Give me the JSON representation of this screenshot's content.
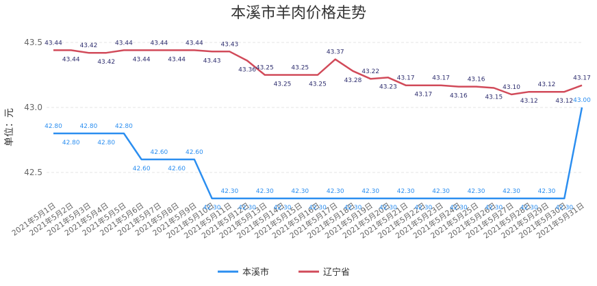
{
  "chart_data": {
    "type": "line",
    "title": "本溪市羊肉价格走势",
    "ylabel": "单位：元",
    "xlabel": "",
    "ylim": [
      42.3,
      43.5
    ],
    "yticks": [
      42.5,
      43.0,
      43.5
    ],
    "grid": true,
    "legend": "bottom",
    "x": [
      "2021年5月1日",
      "2021年5月2日",
      "2021年5月3日",
      "2021年5月4日",
      "2021年5月5日",
      "2021年5月6日",
      "2021年5月7日",
      "2021年5月8日",
      "2021年5月9日",
      "2021年5月10日",
      "2021年5月11日",
      "2021年5月12日",
      "2021年5月13日",
      "2021年5月14日",
      "2021年5月15日",
      "2021年5月16日",
      "2021年5月17日",
      "2021年5月18日",
      "2021年5月19日",
      "2021年5月20日",
      "2021年5月21日",
      "2021年5月22日",
      "2021年5月23日",
      "2021年5月24日",
      "2021年5月25日",
      "2021年5月26日",
      "2021年5月27日",
      "2021年5月28日",
      "2021年5月29日",
      "2021年5月30日",
      "2021年5月31日"
    ],
    "series": [
      {
        "name": "本溪市",
        "color": "#2b8ef0",
        "values": [
          42.8,
          42.8,
          42.8,
          42.8,
          42.8,
          42.6,
          42.6,
          42.6,
          42.6,
          42.3,
          42.3,
          42.3,
          42.3,
          42.3,
          42.3,
          42.3,
          42.3,
          42.3,
          42.3,
          42.3,
          42.3,
          42.3,
          42.3,
          42.3,
          42.3,
          42.3,
          42.3,
          42.3,
          42.3,
          42.3,
          43.0
        ]
      },
      {
        "name": "辽宁省",
        "color": "#d14a59",
        "values": [
          43.44,
          43.44,
          43.42,
          43.42,
          43.44,
          43.44,
          43.44,
          43.44,
          43.44,
          43.43,
          43.43,
          43.36,
          43.25,
          43.25,
          43.25,
          43.25,
          43.37,
          43.28,
          43.22,
          43.23,
          43.17,
          43.17,
          43.17,
          43.16,
          43.16,
          43.15,
          43.1,
          43.12,
          43.12,
          43.12,
          43.17
        ]
      }
    ]
  }
}
